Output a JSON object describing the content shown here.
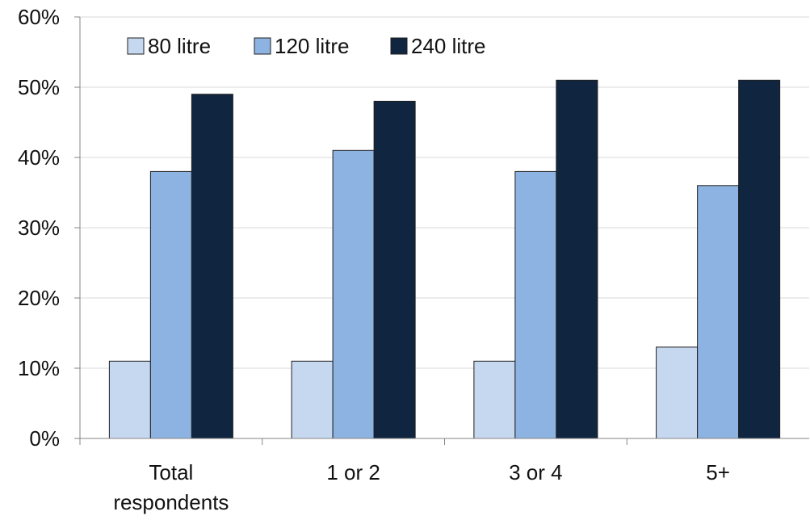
{
  "chart_data": {
    "type": "bar",
    "categories": [
      [
        "Total",
        "respondents"
      ],
      [
        "1 or 2"
      ],
      [
        "3 or 4"
      ],
      [
        "5+"
      ]
    ],
    "series": [
      {
        "name": "80 litre",
        "color": "#c6d8f0",
        "values": [
          11,
          11,
          11,
          13
        ]
      },
      {
        "name": "120 litre",
        "color": "#8db3e2",
        "values": [
          38,
          41,
          38,
          36
        ]
      },
      {
        "name": "240 litre",
        "color": "#10253f",
        "values": [
          49,
          48,
          51,
          51
        ]
      }
    ],
    "ylim": [
      0,
      60
    ],
    "yticks": [
      0,
      10,
      20,
      30,
      40,
      50,
      60
    ],
    "ytick_labels": [
      "0%",
      "10%",
      "20%",
      "30%",
      "40%",
      "50%",
      "60%"
    ],
    "grid": true,
    "legend_position": "top-left",
    "title": "",
    "xlabel": "",
    "ylabel": ""
  }
}
